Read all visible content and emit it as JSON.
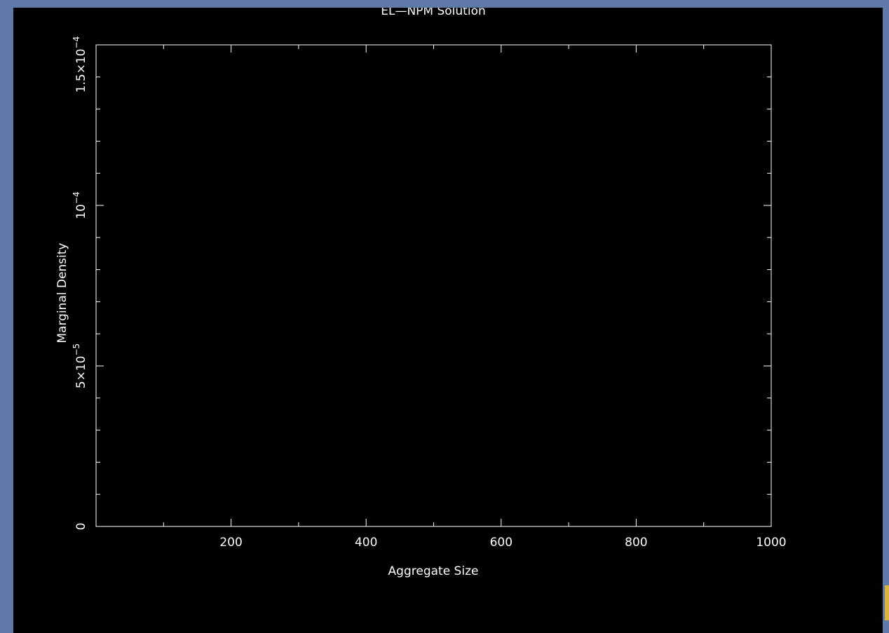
{
  "chart_data": {
    "type": "line",
    "title": "EL—NPM Solution",
    "xlabel": "Aggregate Size",
    "ylabel": "Marginal Density",
    "xlim": [
      0,
      1000
    ],
    "ylim": [
      0,
      0.00015
    ],
    "x_major_ticks": [
      200,
      400,
      600,
      800,
      1000
    ],
    "x_minor_step": 100,
    "y_major_ticks": [
      0,
      5e-05,
      0.0001,
      0.00015
    ],
    "y_minor_step": 1e-05,
    "x_tick_labels": [
      "200",
      "400",
      "600",
      "800",
      "1000"
    ],
    "y_tick_labels": [
      {
        "base": "0",
        "exp": ""
      },
      {
        "base": "5×10",
        "exp": "−5"
      },
      {
        "base": "10",
        "exp": "−4"
      },
      {
        "base": "1.5×10",
        "exp": "−4"
      }
    ],
    "series": [],
    "colors": {
      "axes": "#ffffff",
      "background": "#000000"
    },
    "grid": false
  }
}
